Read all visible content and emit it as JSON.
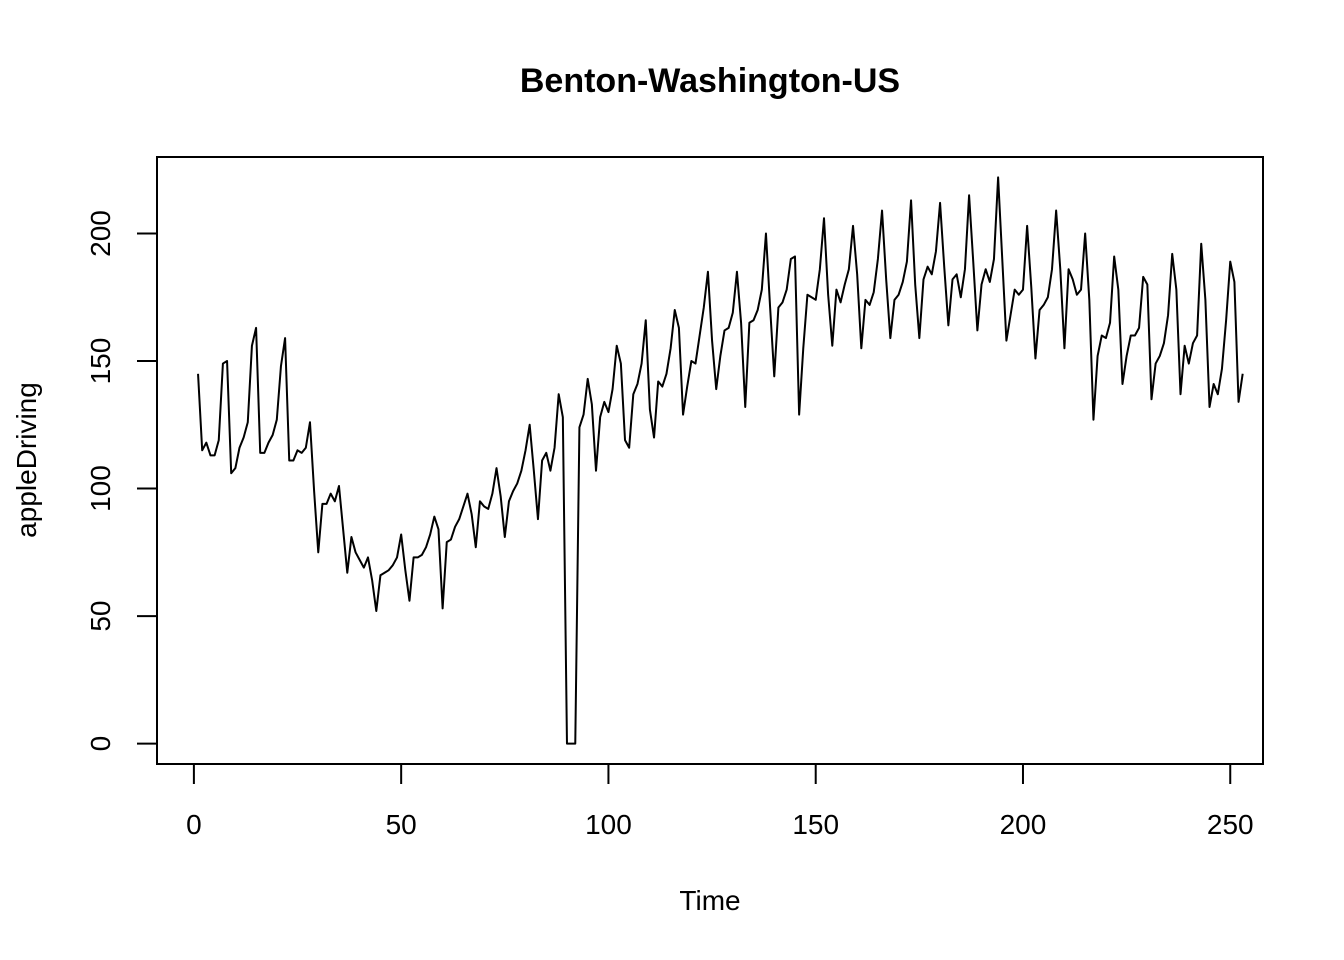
{
  "chart_data": {
    "type": "line",
    "title": "Benton-Washington-US",
    "xlabel": "Time",
    "ylabel": "appleDriving",
    "xlim": [
      -8.9,
      257.9
    ],
    "ylim": [
      -8.0,
      230.0
    ],
    "xticks": [
      0,
      50,
      100,
      150,
      200,
      250
    ],
    "yticks": [
      0,
      50,
      100,
      150,
      200
    ],
    "grid": false,
    "legend": "none",
    "line_color": "#000000",
    "series": [
      {
        "x_start": 1,
        "values": [
          145,
          115,
          118,
          113,
          113,
          119,
          149,
          150,
          106,
          108,
          116,
          120,
          126,
          156,
          163,
          114,
          114,
          118,
          121,
          127,
          148,
          159,
          111,
          111,
          115,
          114,
          116,
          126,
          99,
          75,
          94,
          94,
          98,
          95,
          101,
          84,
          67,
          81,
          75,
          72,
          69,
          73,
          64,
          52,
          66,
          67,
          68,
          70,
          73,
          82,
          68,
          56,
          73,
          73,
          74,
          77,
          82,
          89,
          84,
          53,
          79,
          80,
          85,
          88,
          93,
          98,
          90,
          77,
          95,
          93,
          92,
          98,
          108,
          97,
          81,
          95,
          99,
          102,
          107,
          115,
          125,
          107,
          88,
          111,
          114,
          107,
          116,
          137,
          128,
          0,
          0,
          0,
          124,
          129,
          143,
          133,
          107,
          128,
          134,
          130,
          139,
          156,
          149,
          119,
          116,
          137,
          141,
          149,
          166,
          131,
          120,
          142,
          140,
          145,
          155,
          170,
          163,
          129,
          140,
          150,
          149,
          160,
          171,
          185,
          158,
          139,
          152,
          162,
          163,
          169,
          185,
          165,
          132,
          165,
          166,
          170,
          178,
          200,
          171,
          144,
          171,
          173,
          178,
          190,
          191,
          129,
          155,
          176,
          175,
          174,
          186,
          206,
          176,
          156,
          178,
          173,
          180,
          186,
          203,
          184,
          155,
          174,
          172,
          177,
          190,
          209,
          182,
          159,
          174,
          176,
          181,
          189,
          213,
          180,
          159,
          182,
          187,
          184,
          193,
          212,
          187,
          164,
          182,
          184,
          175,
          186,
          215,
          189,
          162,
          180,
          186,
          181,
          190,
          222,
          190,
          158,
          168,
          178,
          176,
          178,
          203,
          179,
          151,
          170,
          172,
          175,
          186,
          209,
          186,
          155,
          186,
          182,
          176,
          178,
          200,
          174,
          127,
          152,
          160,
          159,
          165,
          191,
          178,
          141,
          152,
          160,
          160,
          163,
          183,
          180,
          135,
          149,
          152,
          157,
          168,
          192,
          178,
          137,
          156,
          149,
          157,
          160,
          196,
          174,
          132,
          141,
          137,
          147,
          166,
          189,
          181,
          134,
          145
        ]
      }
    ]
  }
}
